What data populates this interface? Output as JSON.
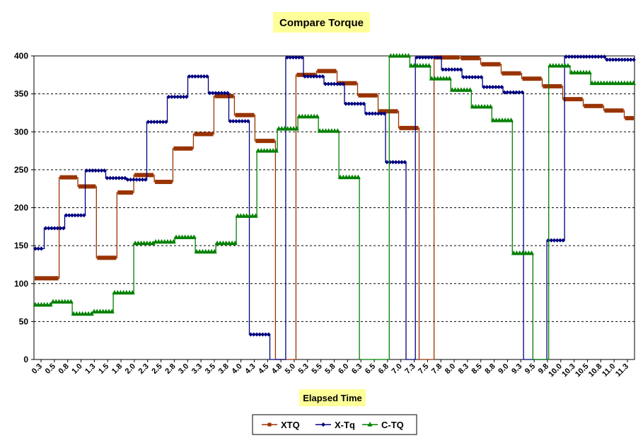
{
  "chart_data": {
    "type": "line",
    "title": "Compare Torque",
    "xlabel": "Elapsed Time",
    "ylabel": "",
    "ylim": [
      0,
      400
    ],
    "yticks": [
      0,
      50,
      100,
      150,
      200,
      250,
      300,
      350,
      400
    ],
    "grid": "horizontal-dashed",
    "legend_position": "bottom-center",
    "x_tick_labels": [
      "0.3",
      "0.5",
      "0.8",
      "1.0",
      "1.3",
      "1.5",
      "1.8",
      "2.0",
      "2.3",
      "2.5",
      "2.8",
      "3.0",
      "3.3",
      "3.5",
      "3.8",
      "4.0",
      "4.3",
      "4.5",
      "4.8",
      "5.0",
      "5.3",
      "5.5",
      "5.8",
      "6.0",
      "6.3",
      "6.5",
      "6.8",
      "7.0",
      "7.3",
      "7.5",
      "7.8",
      "8.0",
      "8.3",
      "8.5",
      "8.8",
      "9.0",
      "9.3",
      "9.5",
      "9.8",
      "10.0",
      "10.3",
      "10.5",
      "10.8",
      "11.0",
      "11.3"
    ],
    "title_bg": "#ffff99",
    "label_bg": "#ffff99",
    "series": [
      {
        "name": "XTQ",
        "color": "#993300",
        "marker": "square",
        "segments": [
          [
            0,
            1.35,
            107
          ],
          [
            1.35,
            2.35,
            240
          ],
          [
            2.35,
            3.35,
            228
          ],
          [
            3.35,
            4.45,
            134
          ],
          [
            4.45,
            5.35,
            220
          ],
          [
            5.35,
            6.45,
            243
          ],
          [
            6.45,
            7.45,
            234
          ],
          [
            7.45,
            8.55,
            278
          ],
          [
            8.55,
            9.65,
            297
          ],
          [
            9.65,
            10.75,
            347
          ],
          [
            10.75,
            11.85,
            322
          ],
          [
            11.85,
            12.95,
            288
          ],
          [
            12.95,
            13.3,
            0
          ],
          [
            13.3,
            14.05,
            0
          ],
          [
            14.05,
            15.15,
            375
          ],
          [
            15.15,
            16.25,
            380
          ],
          [
            16.25,
            17.35,
            364
          ],
          [
            17.35,
            18.45,
            348
          ],
          [
            18.45,
            19.55,
            327
          ],
          [
            19.55,
            20.65,
            305
          ],
          [
            20.65,
            21.45,
            0
          ],
          [
            21.45,
            22.85,
            398
          ],
          [
            22.85,
            23.95,
            397
          ],
          [
            23.95,
            25.05,
            389
          ],
          [
            25.05,
            26.15,
            377
          ],
          [
            26.15,
            27.25,
            370
          ],
          [
            27.25,
            28.35,
            360
          ],
          [
            28.35,
            29.45,
            343
          ],
          [
            29.45,
            30.55,
            334
          ],
          [
            30.55,
            31.65,
            328
          ],
          [
            31.65,
            32.2,
            318
          ]
        ]
      },
      {
        "name": "X-Tq",
        "color": "#000080",
        "marker": "diamond",
        "segments": [
          [
            0,
            0.55,
            146
          ],
          [
            0.55,
            1.65,
            173
          ],
          [
            1.65,
            2.75,
            190
          ],
          [
            2.75,
            3.85,
            249
          ],
          [
            3.85,
            4.95,
            239
          ],
          [
            4.95,
            6.05,
            237
          ],
          [
            6.05,
            7.15,
            313
          ],
          [
            7.15,
            8.25,
            346
          ],
          [
            8.25,
            9.35,
            373
          ],
          [
            9.35,
            10.45,
            351
          ],
          [
            10.45,
            11.55,
            314
          ],
          [
            11.55,
            12.65,
            33
          ],
          [
            12.65,
            13.5,
            0
          ],
          [
            13.5,
            14.45,
            398
          ],
          [
            14.45,
            15.55,
            373
          ],
          [
            15.55,
            16.65,
            363
          ],
          [
            16.65,
            17.75,
            337
          ],
          [
            17.75,
            18.85,
            324
          ],
          [
            18.85,
            19.95,
            260
          ],
          [
            19.95,
            20.45,
            0
          ],
          [
            20.45,
            21.85,
            398
          ],
          [
            21.85,
            22.95,
            382
          ],
          [
            22.95,
            24.05,
            372
          ],
          [
            24.05,
            25.15,
            359
          ],
          [
            25.15,
            26.25,
            352
          ],
          [
            26.25,
            27.5,
            0
          ],
          [
            27.5,
            28.45,
            157
          ],
          [
            28.45,
            29.55,
            399
          ],
          [
            29.55,
            30.65,
            399
          ],
          [
            30.65,
            32.2,
            395
          ]
        ]
      },
      {
        "name": "C-TQ",
        "color": "#008000",
        "marker": "triangle",
        "segments": [
          [
            0,
            0.95,
            72
          ],
          [
            0.95,
            2.05,
            76
          ],
          [
            2.05,
            3.15,
            60
          ],
          [
            3.15,
            4.25,
            63
          ],
          [
            4.25,
            5.35,
            88
          ],
          [
            5.35,
            6.45,
            153
          ],
          [
            6.45,
            7.55,
            155
          ],
          [
            7.55,
            8.65,
            161
          ],
          [
            8.65,
            9.75,
            142
          ],
          [
            9.75,
            10.85,
            153
          ],
          [
            10.85,
            11.95,
            189
          ],
          [
            11.95,
            13.05,
            275
          ],
          [
            13.05,
            14.15,
            304
          ],
          [
            14.15,
            15.25,
            320
          ],
          [
            15.25,
            16.35,
            301
          ],
          [
            16.35,
            17.45,
            240
          ],
          [
            17.45,
            19.05,
            0
          ],
          [
            19.05,
            20.15,
            400
          ],
          [
            20.15,
            21.25,
            387
          ],
          [
            21.25,
            22.35,
            370
          ],
          [
            22.35,
            23.45,
            355
          ],
          [
            23.45,
            24.55,
            333
          ],
          [
            24.55,
            25.65,
            315
          ],
          [
            25.65,
            26.75,
            140
          ],
          [
            26.75,
            27.6,
            0
          ],
          [
            27.6,
            28.75,
            387
          ],
          [
            28.75,
            29.85,
            378
          ],
          [
            29.85,
            30.95,
            364
          ],
          [
            30.95,
            32.2,
            364
          ]
        ]
      }
    ]
  }
}
